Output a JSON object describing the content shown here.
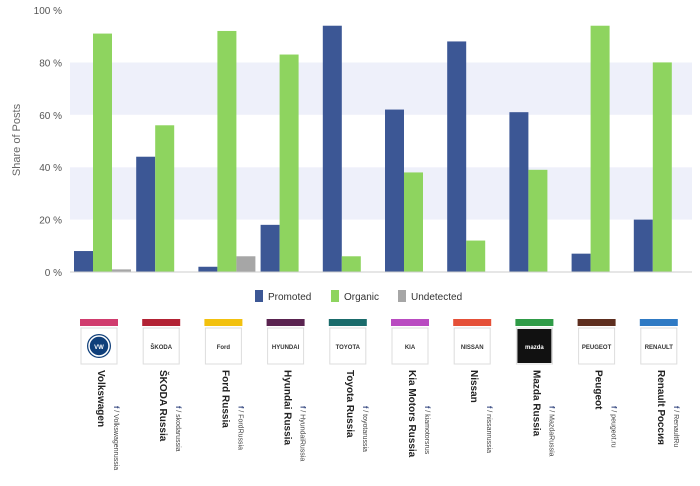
{
  "chart_data": {
    "type": "bar",
    "ylabel": "Share of Posts",
    "ylim": [
      0,
      100
    ],
    "yticks": [
      0,
      20,
      40,
      60,
      80,
      100
    ],
    "ytick_labels": [
      "0 %",
      "20 %",
      "40 %",
      "60 %",
      "80 %",
      "100 %"
    ],
    "grid": "horizontal bands",
    "legend_position": "bottom",
    "categories": [
      "Volkswagen",
      "ŠKODA Russia",
      "Ford Russia",
      "Hyundai Russia",
      "Toyota Russia",
      "Kia Motors Russia",
      "Nissan",
      "Mazda Russia",
      "Peugeot",
      "Renault Россия"
    ],
    "handles": [
      "/ Volkswagenrussia",
      "/ skodarussia",
      "/ FordRussia",
      "/ HyundaiRussia",
      "/ toyotarussia",
      "/ kiamotorsrus",
      "/ nissanrussia",
      "/ MazdaRussia",
      "/ peugeot.ru",
      "/ RenaultRu"
    ],
    "brand_colors": [
      "#d03c6e",
      "#b22234",
      "#f2c10f",
      "#5a2350",
      "#1a6b6b",
      "#b94bc1",
      "#e55038",
      "#2f9b47",
      "#5e2e1f",
      "#2f7ac4"
    ],
    "logo_labels": [
      "VW",
      "ŠKODA",
      "Ford",
      "HYUNDAI",
      "TOYOTA",
      "KIA",
      "NISSAN",
      "mazda",
      "PEUGEOT",
      "RENAULT"
    ],
    "series": [
      {
        "name": "Promoted",
        "color": "#3c5795",
        "values": [
          8,
          44,
          2,
          18,
          94,
          62,
          88,
          61,
          7,
          20
        ]
      },
      {
        "name": "Organic",
        "color": "#8ed45f",
        "values": [
          91,
          56,
          92,
          83,
          6,
          38,
          12,
          39,
          94,
          80
        ]
      },
      {
        "name": "Undetected",
        "color": "#a6a6a6",
        "values": [
          1,
          0,
          6,
          0,
          0,
          0,
          0,
          0,
          0,
          0
        ]
      }
    ]
  }
}
